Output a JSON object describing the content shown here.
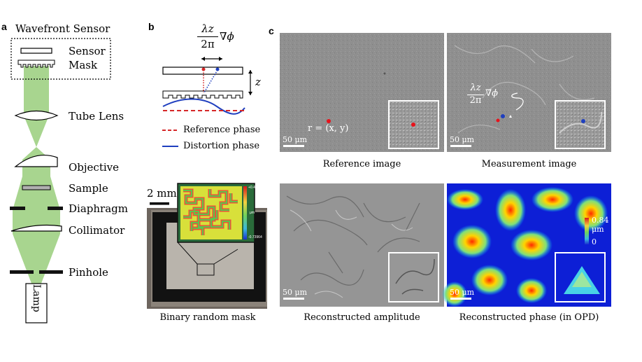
{
  "panels": {
    "a": "a",
    "b": "b",
    "c": "c"
  },
  "panel_a": {
    "title": "Wavefront Sensor",
    "sensor": "Sensor",
    "mask": "Mask",
    "tube_lens": "Tube Lens",
    "objective": "Objective",
    "sample": "Sample",
    "diaphragm": "Diaphragm",
    "collimator": "Collimator",
    "pinhole": "Pinhole",
    "lamp": "Lamp"
  },
  "panel_b": {
    "shift_numerator": "λz",
    "shift_denominator": "2π",
    "shift_operator": "∇ϕ",
    "z_label": "z",
    "legend_reference": "Reference phase",
    "legend_distortion": "Distortion phase",
    "mask_scale": "2 mm",
    "colorbar_max": "+0.44457",
    "colorbar_unit": "μm",
    "colorbar_min": "-0.73964",
    "caption": "Binary random mask"
  },
  "panel_c": {
    "ref_point_label": "r = (x, y)",
    "meas_numerator": "λz",
    "meas_denominator": "2π",
    "meas_operator": "∇ϕ",
    "scale": "50 μm",
    "caption_reference": "Reference image",
    "caption_measurement": "Measurement image",
    "caption_amplitude": "Reconstructed amplitude",
    "caption_phase": "Reconstructed phase (in OPD)",
    "phase_max": "0.84",
    "phase_unit": "μm",
    "phase_min": "0"
  },
  "colors": {
    "beam": "#a8d58f",
    "reference_phase": "#d62728",
    "distortion_phase": "#1f3fbf",
    "micrograph": "#8e8e8e"
  }
}
